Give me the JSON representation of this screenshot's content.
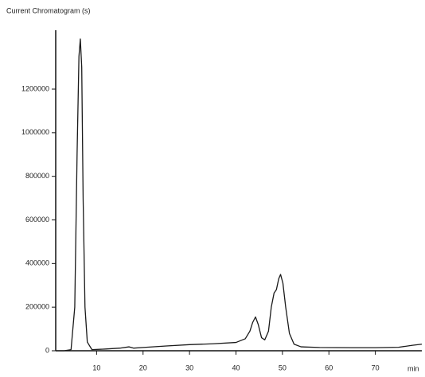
{
  "chart_data": {
    "type": "line",
    "title": "Current Chromatogram (s)",
    "x_label": "min",
    "x": [
      1.2,
      3,
      4.5,
      5.3,
      5.8,
      6.2,
      6.5,
      6.8,
      7.1,
      7.5,
      8,
      9,
      12,
      15,
      17,
      18,
      20,
      25,
      30,
      35,
      40,
      42,
      43,
      43.6,
      44.2,
      44.8,
      45.5,
      46.2,
      47,
      47.6,
      48.2,
      48.7,
      49.2,
      49.6,
      50.1,
      50.7,
      51.5,
      52.5,
      54,
      58,
      65,
      70,
      75,
      78,
      80
    ],
    "values": [
      0,
      0,
      5000,
      200000,
      900000,
      1350000,
      1430000,
      1300000,
      700000,
      200000,
      40000,
      5000,
      8000,
      12000,
      18000,
      12000,
      15000,
      22000,
      28000,
      32000,
      38000,
      55000,
      90000,
      130000,
      155000,
      120000,
      60000,
      50000,
      90000,
      200000,
      265000,
      280000,
      330000,
      350000,
      310000,
      200000,
      80000,
      30000,
      18000,
      15000,
      14000,
      14000,
      16000,
      25000,
      30000
    ],
    "color": "#1a1a1a",
    "xlim": [
      1.2,
      80
    ],
    "xticks": [
      10,
      20,
      30,
      40,
      50,
      60,
      70
    ],
    "ylim": [
      0,
      1470000
    ],
    "yticks": [
      0,
      200000,
      400000,
      600000,
      800000,
      1000000,
      1200000
    ],
    "grid": false
  }
}
